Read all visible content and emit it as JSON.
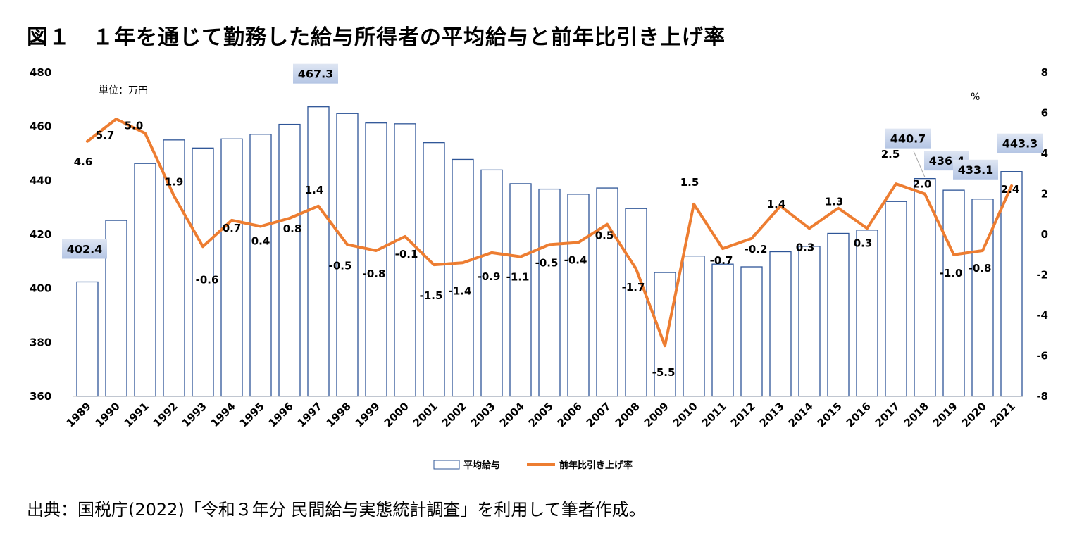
{
  "title": "図１　１年を通じて勤務した給与所得者の平均給与と前年比引き上げ率",
  "source": "出典：国税庁(2022)「令和３年分 民間給与実態統計調査」を利用して筆者作成。",
  "chart_data": {
    "type": "bar+line",
    "categories": [
      "1989",
      "1990",
      "1991",
      "1992",
      "1993",
      "1994",
      "1995",
      "1996",
      "1997",
      "1998",
      "1999",
      "2000",
      "2001",
      "2002",
      "2003",
      "2004",
      "2005",
      "2006",
      "2007",
      "2008",
      "2009",
      "2010",
      "2011",
      "2012",
      "2013",
      "2014",
      "2015",
      "2016",
      "2017",
      "2018",
      "2019",
      "2020",
      "2021"
    ],
    "series": [
      {
        "name": "平均給与",
        "type": "bar",
        "axis": "left",
        "values": [
          402.4,
          425.2,
          446.3,
          455.0,
          452.0,
          455.4,
          457.1,
          460.8,
          467.3,
          464.8,
          461.3,
          461.0,
          454.0,
          447.8,
          443.9,
          438.8,
          436.8,
          434.9,
          437.2,
          429.6,
          405.9,
          412.0,
          409.0,
          408.0,
          413.6,
          415.6,
          420.4,
          421.6,
          432.2,
          440.7,
          436.4,
          433.1,
          443.3
        ],
        "labels": {
          "0": "402.4",
          "8": "467.3",
          "29": "440.7",
          "30": "436.4",
          "31": "433.1",
          "32": "443.3"
        },
        "color": "#2e5597"
      },
      {
        "name": "前年比引き上げ率",
        "type": "line",
        "axis": "right",
        "values": [
          4.6,
          5.7,
          5.0,
          1.9,
          -0.6,
          0.7,
          0.4,
          0.8,
          1.4,
          -0.5,
          -0.8,
          -0.1,
          -1.5,
          -1.4,
          -0.9,
          -1.1,
          -0.5,
          -0.4,
          0.5,
          -1.7,
          -5.5,
          1.5,
          -0.7,
          -0.2,
          1.4,
          0.3,
          1.3,
          0.3,
          2.5,
          2.0,
          -1.0,
          -0.8,
          2.4
        ],
        "labels": [
          "4.6",
          "5.7",
          "5.0",
          "1.9",
          "-0.6",
          "0.7",
          "0.4",
          "0.8",
          "1.4",
          "-0.5",
          "-0.8",
          "-0.1",
          "-1.5",
          "-1.4",
          "-0.9",
          "-1.1",
          "-0.5",
          "-0.4",
          "0.5",
          "-1.7",
          "-5.5",
          "1.5",
          "-0.7",
          "-0.2",
          "1.4",
          "0.3",
          "1.3",
          "0.3",
          "2.5",
          "2.0",
          "-1.0",
          "-0.8",
          "2.4"
        ],
        "color": "#ed7d31"
      }
    ],
    "ylim_left": [
      360,
      480
    ],
    "yticks_left": [
      "480",
      "460",
      "440",
      "420",
      "400",
      "380",
      "360"
    ],
    "ylim_right": [
      -8,
      8
    ],
    "yticks_right": [
      "8",
      "6",
      "4",
      "2",
      "0",
      "-2",
      "-4",
      "-6",
      "-8"
    ],
    "unit_left": "単位：万円",
    "unit_right": "%",
    "legend": [
      "平均給与",
      "前年比引き上げ率"
    ],
    "legend_position": "bottom-center"
  }
}
